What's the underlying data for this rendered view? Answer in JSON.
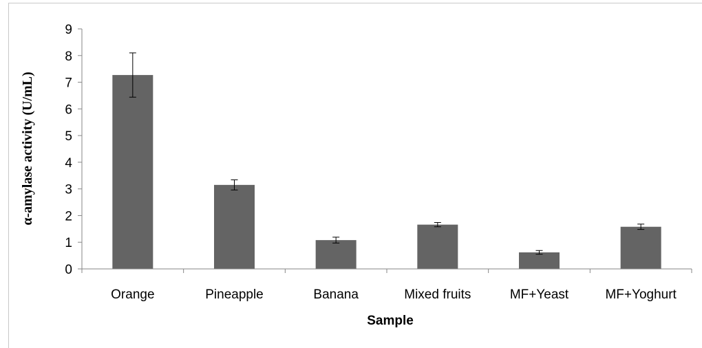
{
  "chart_data": {
    "type": "bar",
    "title": "",
    "xlabel": "Sample",
    "ylabel": "α-amylase activity (U/mL)",
    "categories": [
      "Orange",
      "Pineapple",
      "Banana",
      "Mixed fruits",
      "MF+Yeast",
      "MF+Yoghurt"
    ],
    "values": [
      7.27,
      3.15,
      1.08,
      1.66,
      0.62,
      1.58
    ],
    "errors": [
      0.83,
      0.19,
      0.11,
      0.08,
      0.07,
      0.1
    ],
    "ylim": [
      0,
      9
    ],
    "yticks": [
      "0",
      "1",
      "2",
      "3",
      "4",
      "5",
      "6",
      "7",
      "8",
      "9"
    ],
    "grid": false,
    "legend": "none",
    "bar_color": "#646464",
    "axis_color": "#868686"
  }
}
